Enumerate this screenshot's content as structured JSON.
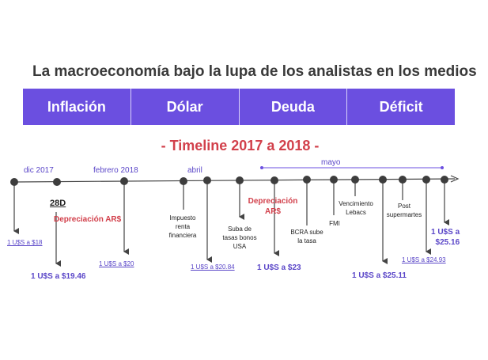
{
  "title": "La macroeconomía bajo la lupa de los analistas en los medios",
  "tabs": [
    "Inflación",
    "Dólar",
    "Deuda",
    "Déficit"
  ],
  "subtitle": "- Timeline 2017 a 2018 -",
  "months": {
    "dic2017": "dic 2017",
    "feb2018": "febrero 2018",
    "abril": "abril",
    "mayo": "mayo"
  },
  "date_28d": "28D",
  "events": {
    "depreciacion1": "Depreciación AR$",
    "impuesto": [
      "Impuesto",
      "renta",
      "financiera"
    ],
    "suba_tasas": [
      "Suba de",
      "tasas bonos",
      "USA"
    ],
    "depreciacion2": [
      "Depreciación",
      "AR$"
    ],
    "bcra": [
      "BCRA sube",
      "la tasa"
    ],
    "fmi": "FMI",
    "lebacs": [
      "Vencimiento",
      "Lebacs"
    ],
    "post": [
      "Post",
      "supermartes"
    ]
  },
  "values": {
    "v18": "1 U$S a $18",
    "v1946": "1 U$S a $19.46",
    "v20": "1 U$S a $20",
    "v2084": "1 U$S a $20.84",
    "v23": "1 U$S a $23",
    "v2511": "1 U$S a $25.11",
    "v2493": "1 U$S a $24.93",
    "v2516": [
      "1 U$S a",
      "$25.16"
    ]
  },
  "colors": {
    "tab_bg": "#6b4fe0",
    "accent_red": "#d2404b",
    "value_purple": "#5a46c8",
    "line_dark": "#444444"
  }
}
